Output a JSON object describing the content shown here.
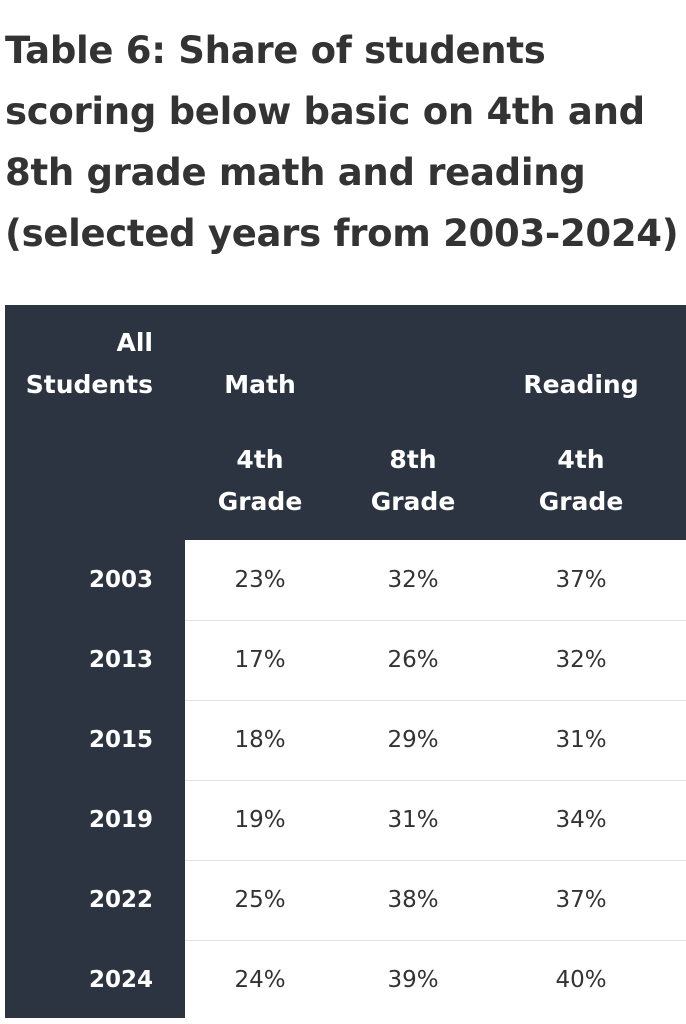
{
  "title": "Table 6: Share of students scoring below basic on 4th and 8th grade math and reading (selected years from 2003-2024)",
  "table": {
    "stub_header": "All\nStudents",
    "group_headers": [
      "Math",
      "Reading"
    ],
    "sub_headers": [
      "4th\nGrade",
      "8th\nGrade",
      "4th\nGrade"
    ],
    "rows": [
      {
        "year": "2003",
        "values": [
          "23%",
          "32%",
          "37%"
        ]
      },
      {
        "year": "2013",
        "values": [
          "17%",
          "26%",
          "32%"
        ]
      },
      {
        "year": "2015",
        "values": [
          "18%",
          "29%",
          "31%"
        ]
      },
      {
        "year": "2019",
        "values": [
          "19%",
          "31%",
          "34%"
        ]
      },
      {
        "year": "2022",
        "values": [
          "25%",
          "38%",
          "37%"
        ]
      },
      {
        "year": "2024",
        "values": [
          "24%",
          "39%",
          "40%"
        ]
      }
    ]
  },
  "colors": {
    "header_background": "#2c3442",
    "header_text": "#ffffff",
    "body_text": "#333333",
    "row_divider": "#e3e3e3"
  }
}
